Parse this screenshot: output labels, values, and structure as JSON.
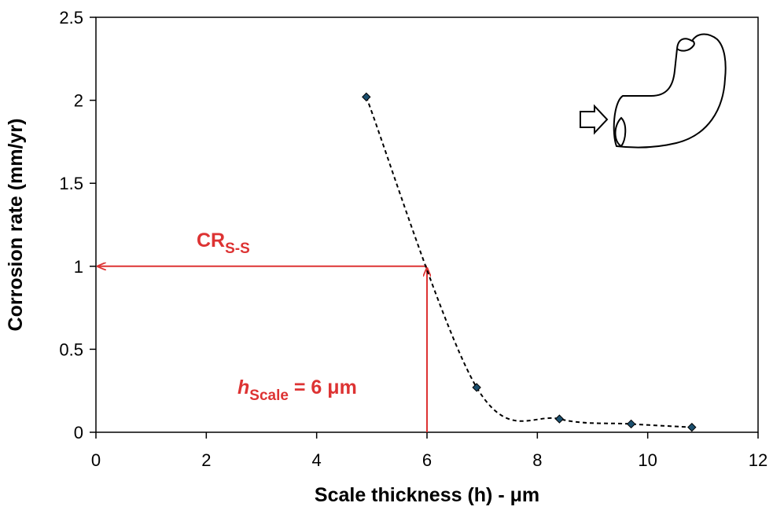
{
  "chart_data": {
    "type": "scatter",
    "title": "",
    "xlabel": "Scale thickness (h) - μm",
    "ylabel": "Corrosion rate (mm/yr)",
    "xlim": [
      0,
      12
    ],
    "ylim": [
      0,
      2.5
    ],
    "x_ticks": [
      0,
      2,
      4,
      6,
      8,
      10,
      12
    ],
    "y_ticks": [
      0,
      0.5,
      1,
      1.5,
      2,
      2.5
    ],
    "x_tick_labels": [
      "0",
      "2",
      "4",
      "6",
      "8",
      "10",
      "12"
    ],
    "y_tick_labels": [
      "0",
      "0.5",
      "1",
      "1.5",
      "2",
      "2.5"
    ],
    "grid": false,
    "legend": "none",
    "series": [
      {
        "marker": "diamond",
        "marker_color": "#1b4f6e",
        "line_style": "dashed",
        "line_color": "#000000",
        "x": [
          4.9,
          6.9,
          8.4,
          9.7,
          10.8
        ],
        "y": [
          2.02,
          0.27,
          0.08,
          0.05,
          0.03
        ]
      }
    ],
    "annotations": {
      "cr_label": {
        "main": "CR",
        "subscript": "S-S"
      },
      "h_label": {
        "italic": "h",
        "subscript": "Scale",
        "rest": " = 6 μm"
      },
      "intersection": {
        "x": 6,
        "y": 1
      },
      "color": "#dd3333"
    },
    "inset_icon": "pipe-elbow-flow-icon"
  }
}
